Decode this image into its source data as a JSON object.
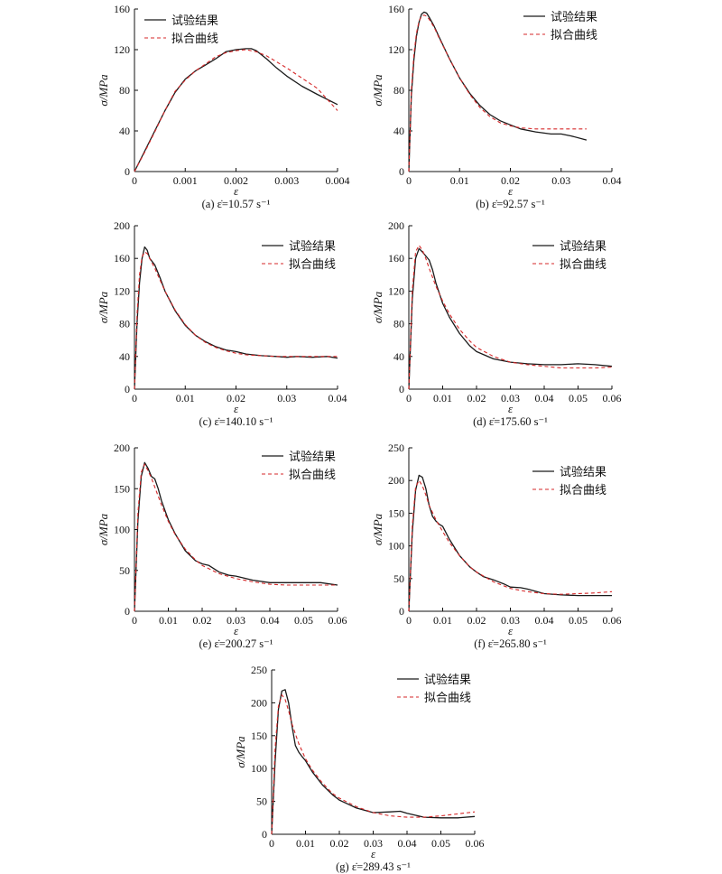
{
  "legend": {
    "test": "试验结果",
    "fit": "拟合曲线"
  },
  "colors": {
    "test": "#1a1a1a",
    "fit": "#d62728"
  },
  "chart_data": [
    {
      "id": "a",
      "type": "line",
      "caption": "(a) ε̇=10.57 s⁻¹",
      "xlabel": "ε",
      "ylabel": "σ/MPa",
      "xlim": [
        0,
        0.004
      ],
      "ylim": [
        0,
        160
      ],
      "xticks": [
        0,
        0.001,
        0.002,
        0.003,
        0.004
      ],
      "xticklabels": [
        "0",
        "0.001",
        "0.002",
        "0.003",
        "0.004"
      ],
      "yticks": [
        0,
        40,
        80,
        120,
        160
      ],
      "series": [
        {
          "name": "试验结果",
          "x": [
            0,
            0.0002,
            0.0004,
            0.0006,
            0.0008,
            0.001,
            0.0012,
            0.0014,
            0.0016,
            0.0018,
            0.002,
            0.0022,
            0.0023,
            0.0024,
            0.0026,
            0.0028,
            0.003,
            0.0033,
            0.0036,
            0.004
          ],
          "y": [
            0,
            20,
            40,
            60,
            78,
            91,
            99,
            105,
            111,
            118,
            120,
            121,
            121,
            119,
            111,
            102,
            94,
            84,
            76,
            66
          ]
        },
        {
          "name": "拟合曲线",
          "x": [
            0,
            0.0002,
            0.0004,
            0.0006,
            0.0008,
            0.001,
            0.0012,
            0.0014,
            0.0016,
            0.0018,
            0.002,
            0.0022,
            0.0024,
            0.0026,
            0.0028,
            0.003,
            0.0033,
            0.0036,
            0.004
          ],
          "y": [
            0,
            19,
            39,
            60,
            79,
            90,
            99,
            106,
            113,
            117,
            119,
            120,
            118,
            114,
            108,
            102,
            92,
            82,
            60
          ]
        }
      ]
    },
    {
      "id": "b",
      "type": "line",
      "caption": "(b) ε̇=92.57 s⁻¹",
      "xlabel": "ε",
      "ylabel": "σ/MPa",
      "xlim": [
        0,
        0.04
      ],
      "ylim": [
        0,
        160
      ],
      "xticks": [
        0,
        0.01,
        0.02,
        0.03,
        0.04
      ],
      "xticklabels": [
        "0",
        "0.01",
        "0.02",
        "0.03",
        "0.04"
      ],
      "yticks": [
        0,
        40,
        80,
        120,
        160
      ],
      "series": [
        {
          "name": "试验结果",
          "x": [
            0,
            0.0005,
            0.001,
            0.0015,
            0.002,
            0.0025,
            0.003,
            0.0035,
            0.004,
            0.005,
            0.006,
            0.008,
            0.01,
            0.012,
            0.014,
            0.016,
            0.018,
            0.02,
            0.022,
            0.025,
            0.028,
            0.03,
            0.032,
            0.035
          ],
          "y": [
            0,
            75,
            110,
            133,
            147,
            155,
            157,
            156,
            152,
            143,
            132,
            111,
            92,
            77,
            65,
            56,
            50,
            46,
            42,
            39,
            37,
            37,
            35,
            31
          ]
        },
        {
          "name": "拟合曲线",
          "x": [
            0,
            0.0005,
            0.001,
            0.0015,
            0.002,
            0.0025,
            0.003,
            0.0035,
            0.004,
            0.005,
            0.006,
            0.008,
            0.01,
            0.012,
            0.014,
            0.016,
            0.018,
            0.02,
            0.022,
            0.025,
            0.028,
            0.032,
            0.035
          ],
          "y": [
            0,
            80,
            115,
            136,
            148,
            153,
            154,
            153,
            150,
            142,
            131,
            111,
            92,
            76,
            63,
            54,
            48,
            45,
            43,
            42,
            42,
            42,
            42
          ]
        }
      ]
    },
    {
      "id": "c",
      "type": "line",
      "caption": "(c) ε̇=140.10 s⁻¹",
      "xlabel": "ε",
      "ylabel": "σ/MPa",
      "xlim": [
        0,
        0.04
      ],
      "ylim": [
        0,
        200
      ],
      "xticks": [
        0,
        0.01,
        0.02,
        0.03,
        0.04
      ],
      "xticklabels": [
        "0",
        "0.01",
        "0.02",
        "0.03",
        "0.04"
      ],
      "yticks": [
        0,
        40,
        80,
        120,
        160,
        200
      ],
      "series": [
        {
          "name": "试验结果",
          "x": [
            0,
            0.0005,
            0.001,
            0.0015,
            0.002,
            0.0025,
            0.003,
            0.004,
            0.005,
            0.006,
            0.008,
            0.01,
            0.012,
            0.014,
            0.016,
            0.018,
            0.02,
            0.022,
            0.025,
            0.028,
            0.03,
            0.032,
            0.035,
            0.038,
            0.04
          ],
          "y": [
            0,
            80,
            130,
            160,
            174,
            170,
            160,
            152,
            137,
            120,
            96,
            78,
            66,
            58,
            52,
            48,
            46,
            43,
            41,
            40,
            39,
            40,
            39,
            40,
            38
          ]
        },
        {
          "name": "拟合曲线",
          "x": [
            0,
            0.0005,
            0.001,
            0.0015,
            0.002,
            0.0025,
            0.003,
            0.004,
            0.005,
            0.006,
            0.008,
            0.01,
            0.012,
            0.014,
            0.016,
            0.018,
            0.02,
            0.022,
            0.025,
            0.028,
            0.03,
            0.035,
            0.04
          ],
          "y": [
            0,
            90,
            140,
            162,
            168,
            166,
            160,
            148,
            134,
            120,
            97,
            79,
            66,
            57,
            51,
            47,
            44,
            42,
            41,
            40,
            40,
            40,
            40
          ]
        }
      ]
    },
    {
      "id": "d",
      "type": "line",
      "caption": "(d) ε̇=175.60 s⁻¹",
      "xlabel": "ε",
      "ylabel": "σ/MPa",
      "xlim": [
        0,
        0.06
      ],
      "ylim": [
        0,
        200
      ],
      "xticks": [
        0,
        0.01,
        0.02,
        0.03,
        0.04,
        0.05,
        0.06
      ],
      "xticklabels": [
        "0",
        "0.01",
        "0.02",
        "0.03",
        "0.04",
        "0.05",
        "0.06"
      ],
      "yticks": [
        0,
        40,
        80,
        120,
        160,
        200
      ],
      "series": [
        {
          "name": "试验结果",
          "x": [
            0,
            0.001,
            0.002,
            0.003,
            0.004,
            0.005,
            0.006,
            0.007,
            0.008,
            0.01,
            0.012,
            0.015,
            0.018,
            0.02,
            0.025,
            0.03,
            0.035,
            0.04,
            0.045,
            0.05,
            0.055,
            0.06
          ],
          "y": [
            0,
            110,
            160,
            172,
            168,
            163,
            158,
            146,
            130,
            105,
            88,
            68,
            53,
            46,
            37,
            33,
            31,
            30,
            30,
            31,
            30,
            28
          ]
        },
        {
          "name": "拟合曲线",
          "x": [
            0,
            0.001,
            0.002,
            0.003,
            0.004,
            0.005,
            0.006,
            0.008,
            0.01,
            0.012,
            0.015,
            0.018,
            0.02,
            0.025,
            0.03,
            0.035,
            0.04,
            0.045,
            0.05,
            0.055,
            0.06
          ],
          "y": [
            0,
            120,
            168,
            176,
            170,
            160,
            148,
            126,
            108,
            92,
            73,
            59,
            51,
            40,
            33,
            30,
            28,
            26,
            26,
            26,
            27
          ]
        }
      ]
    },
    {
      "id": "e",
      "type": "line",
      "caption": "(e) ε̇=200.27 s⁻¹",
      "xlabel": "ε",
      "ylabel": "σ/MPa",
      "xlim": [
        0,
        0.06
      ],
      "ylim": [
        0,
        200
      ],
      "xticks": [
        0,
        0.01,
        0.02,
        0.03,
        0.04,
        0.05,
        0.06
      ],
      "xticklabels": [
        "0",
        "0.01",
        "0.02",
        "0.03",
        "0.04",
        "0.05",
        "0.06"
      ],
      "yticks": [
        0,
        50,
        100,
        150,
        200
      ],
      "series": [
        {
          "name": "试验结果",
          "x": [
            0,
            0.001,
            0.002,
            0.003,
            0.004,
            0.005,
            0.006,
            0.007,
            0.008,
            0.01,
            0.012,
            0.015,
            0.018,
            0.02,
            0.022,
            0.025,
            0.028,
            0.03,
            0.035,
            0.04,
            0.045,
            0.05,
            0.055,
            0.06
          ],
          "y": [
            0,
            110,
            165,
            182,
            175,
            165,
            162,
            150,
            135,
            112,
            95,
            74,
            62,
            58,
            56,
            48,
            44,
            43,
            38,
            35,
            35,
            35,
            35,
            32
          ]
        },
        {
          "name": "拟合曲线",
          "x": [
            0,
            0.001,
            0.002,
            0.003,
            0.004,
            0.005,
            0.006,
            0.008,
            0.01,
            0.012,
            0.015,
            0.018,
            0.02,
            0.025,
            0.03,
            0.035,
            0.04,
            0.045,
            0.05,
            0.055,
            0.06
          ],
          "y": [
            0,
            120,
            170,
            180,
            172,
            163,
            152,
            130,
            110,
            94,
            76,
            63,
            56,
            46,
            40,
            36,
            33,
            32,
            32,
            32,
            32
          ]
        }
      ]
    },
    {
      "id": "f",
      "type": "line",
      "caption": "(f) ε̇=265.80 s⁻¹",
      "xlabel": "ε",
      "ylabel": "σ/MPa",
      "xlim": [
        0,
        0.06
      ],
      "ylim": [
        0,
        250
      ],
      "xticks": [
        0,
        0.01,
        0.02,
        0.03,
        0.04,
        0.05,
        0.06
      ],
      "xticklabels": [
        "0",
        "0.01",
        "0.02",
        "0.03",
        "0.04",
        "0.05",
        "0.06"
      ],
      "yticks": [
        0,
        50,
        100,
        150,
        200,
        250
      ],
      "series": [
        {
          "name": "试验结果",
          "x": [
            0,
            0.001,
            0.002,
            0.003,
            0.004,
            0.005,
            0.006,
            0.007,
            0.008,
            0.009,
            0.01,
            0.012,
            0.015,
            0.018,
            0.02,
            0.022,
            0.025,
            0.028,
            0.03,
            0.033,
            0.035,
            0.04,
            0.045,
            0.05,
            0.055,
            0.06
          ],
          "y": [
            0,
            120,
            185,
            208,
            205,
            188,
            162,
            145,
            138,
            133,
            130,
            110,
            85,
            68,
            60,
            53,
            48,
            42,
            37,
            36,
            34,
            27,
            25,
            24,
            24,
            24
          ]
        },
        {
          "name": "拟合曲线",
          "x": [
            0,
            0.001,
            0.002,
            0.003,
            0.004,
            0.005,
            0.006,
            0.008,
            0.01,
            0.012,
            0.015,
            0.018,
            0.02,
            0.025,
            0.03,
            0.035,
            0.04,
            0.045,
            0.05,
            0.055,
            0.06
          ],
          "y": [
            0,
            130,
            190,
            200,
            192,
            178,
            162,
            140,
            122,
            105,
            85,
            68,
            60,
            45,
            35,
            30,
            27,
            26,
            27,
            28,
            30
          ]
        }
      ]
    },
    {
      "id": "g",
      "type": "line",
      "caption": "(g) ε̇=289.43 s⁻¹",
      "xlabel": "ε",
      "ylabel": "σ/MPa",
      "xlim": [
        0,
        0.06
      ],
      "ylim": [
        0,
        250
      ],
      "xticks": [
        0,
        0.01,
        0.02,
        0.03,
        0.04,
        0.05,
        0.06
      ],
      "xticklabels": [
        "0",
        "0.01",
        "0.02",
        "0.03",
        "0.04",
        "0.05",
        "0.06"
      ],
      "yticks": [
        0,
        50,
        100,
        150,
        200,
        250
      ],
      "series": [
        {
          "name": "试验结果",
          "x": [
            0,
            0.001,
            0.002,
            0.003,
            0.004,
            0.005,
            0.006,
            0.007,
            0.008,
            0.009,
            0.01,
            0.012,
            0.015,
            0.018,
            0.02,
            0.025,
            0.03,
            0.035,
            0.038,
            0.04,
            0.045,
            0.05,
            0.055,
            0.06
          ],
          "y": [
            0,
            110,
            190,
            218,
            220,
            200,
            165,
            135,
            125,
            118,
            112,
            95,
            75,
            60,
            52,
            40,
            33,
            34,
            35,
            32,
            26,
            25,
            25,
            27
          ]
        },
        {
          "name": "拟合曲线",
          "x": [
            0,
            0.001,
            0.002,
            0.003,
            0.004,
            0.005,
            0.006,
            0.008,
            0.01,
            0.012,
            0.015,
            0.018,
            0.02,
            0.025,
            0.03,
            0.035,
            0.04,
            0.045,
            0.05,
            0.055,
            0.06
          ],
          "y": [
            0,
            130,
            195,
            212,
            205,
            188,
            168,
            138,
            115,
            98,
            78,
            62,
            55,
            42,
            33,
            28,
            26,
            26,
            28,
            31,
            34
          ]
        }
      ]
    }
  ]
}
